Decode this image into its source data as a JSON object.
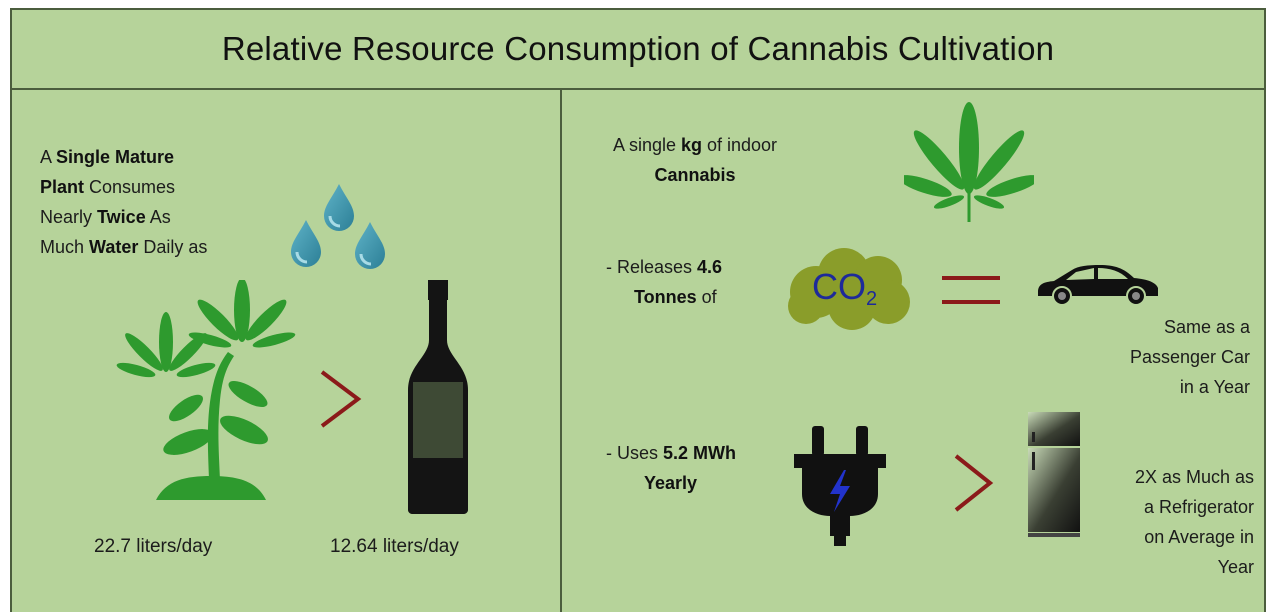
{
  "title": "Relative Resource Consumption of Cannabis Cultivation",
  "left": {
    "intro": {
      "l1_a": "A ",
      "l1_b": "Single Mature",
      "l2_a": "Plant",
      "l2_b": " Consumes",
      "l3_a": "Nearly ",
      "l3_b": "Twice",
      "l3_c": " As",
      "l4_a": "Much ",
      "l4_b": "Water",
      "l4_c": " Daily as"
    },
    "plant_value": "22.7 liters/day",
    "bottle_value": "12.64 liters/day"
  },
  "right": {
    "intro": {
      "l1_a": "A single ",
      "l1_b": "kg",
      "l1_c": " of indoor",
      "l2": "Cannabis"
    },
    "co2": {
      "l1_a": "- Releases ",
      "l1_b": "4.6",
      "l2_a": "Tonnes",
      "l2_b": " of",
      "symbol_main": "CO",
      "symbol_sub": "2",
      "comparison": [
        "Same as a",
        "Passenger Car",
        "in a Year"
      ]
    },
    "energy": {
      "l1_a": "- Uses ",
      "l1_b": "5.2 MWh",
      "l2": "Yearly",
      "comparison": [
        "2X as Much as",
        "a Refrigerator",
        "on Average in",
        "Year"
      ]
    }
  },
  "colors": {
    "background": "#b6d39a",
    "border": "#4b5d3d",
    "leaf": "#2e9a2e",
    "greater_than": "#8b1a1a",
    "cloud": "#8a9d2a",
    "co2_text": "#1d2a9a",
    "water_drop": "#3b8fa6",
    "bolt": "#2233cc"
  },
  "icons": [
    "water-drops-icon",
    "plant-icon",
    "wine-bottle-icon",
    "cannabis-leaf-icon",
    "co2-cloud-icon",
    "equals-icon",
    "car-icon",
    "plug-icon",
    "refrigerator-icon",
    "greater-than-icon"
  ]
}
